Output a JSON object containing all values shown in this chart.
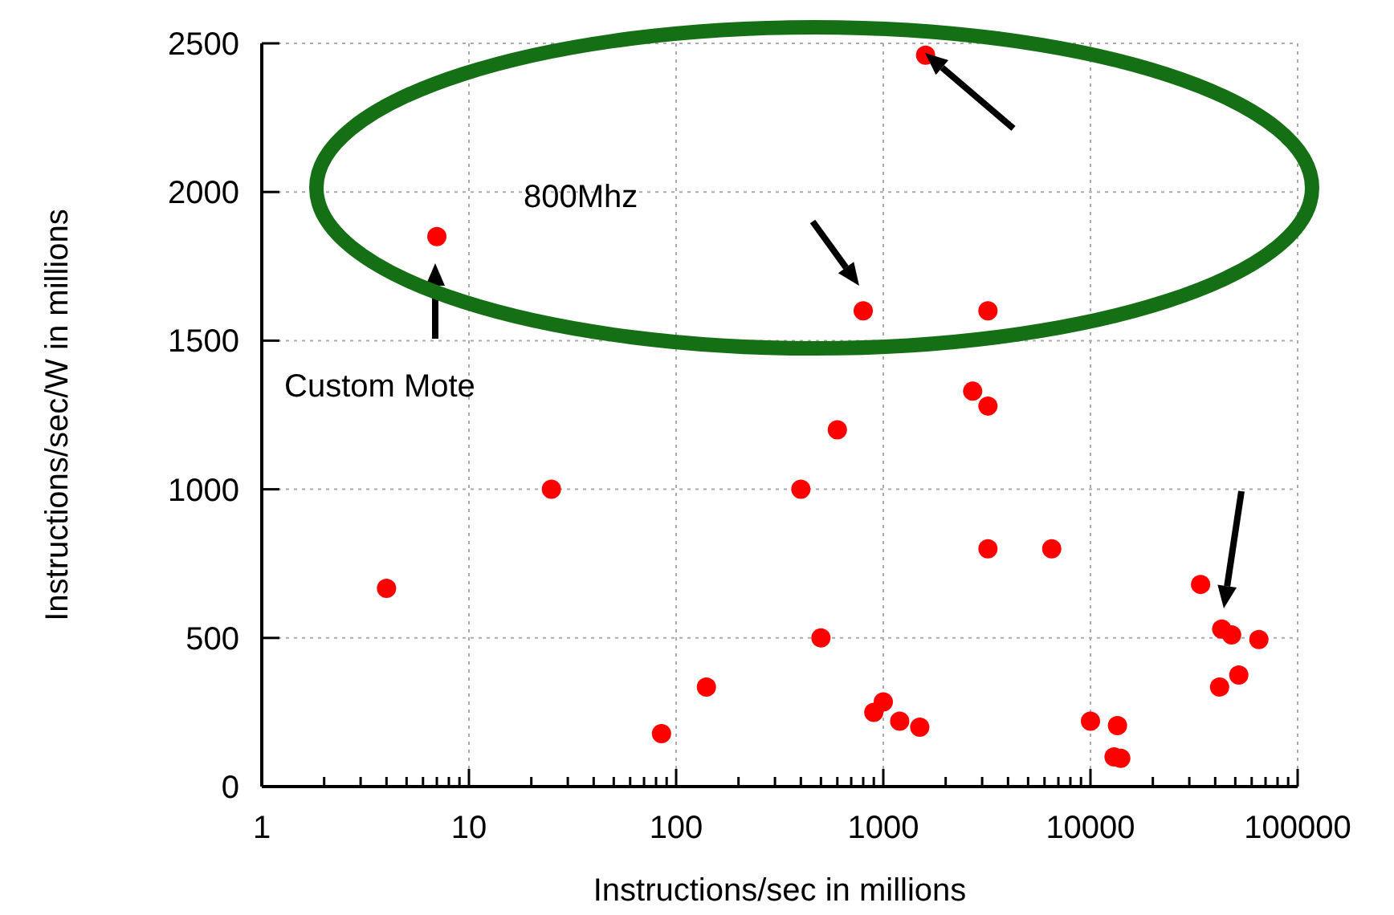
{
  "chart_data": {
    "type": "scatter",
    "xlabel": "Instructions/sec in millions",
    "ylabel": "Instructions/sec/W in millions",
    "log": "x",
    "grid": true,
    "marker": "circle",
    "xlim": [
      1,
      100000
    ],
    "ylim": [
      0,
      2500
    ],
    "xticks": [
      1,
      {
        "value": 2,
        "label": null
      },
      {
        "value": 3,
        "label": null
      },
      {
        "value": 4,
        "label": null
      },
      {
        "value": 5,
        "label": null
      },
      {
        "value": 6,
        "label": null
      },
      {
        "value": 7,
        "label": null
      },
      {
        "value": 8,
        "label": null
      },
      {
        "value": 9,
        "label": null
      },
      10,
      {
        "value": 20,
        "label": null
      },
      {
        "value": 30,
        "label": null
      },
      {
        "value": 40,
        "label": null
      },
      {
        "value": 50,
        "label": null
      },
      {
        "value": 60,
        "label": null
      },
      {
        "value": 70,
        "label": null
      },
      {
        "value": 80,
        "label": null
      },
      {
        "value": 90,
        "label": null
      },
      100,
      {
        "value": 200,
        "label": null
      },
      {
        "value": 300,
        "label": null
      },
      {
        "value": 400,
        "label": null
      },
      {
        "value": 500,
        "label": null
      },
      {
        "value": 600,
        "label": null
      },
      {
        "value": 700,
        "label": null
      },
      {
        "value": 800,
        "label": null
      },
      {
        "value": 900,
        "label": null
      },
      1000,
      {
        "value": 2000,
        "label": null
      },
      {
        "value": 3000,
        "label": null
      },
      {
        "value": 4000,
        "label": null
      },
      {
        "value": 5000,
        "label": null
      },
      {
        "value": 6000,
        "label": null
      },
      {
        "value": 7000,
        "label": null
      },
      {
        "value": 8000,
        "label": null
      },
      {
        "value": 9000,
        "label": null
      },
      10000,
      {
        "value": 20000,
        "label": null
      },
      {
        "value": 30000,
        "label": null
      },
      {
        "value": 40000,
        "label": null
      },
      {
        "value": 50000,
        "label": null
      },
      {
        "value": 60000,
        "label": null
      },
      {
        "value": 70000,
        "label": null
      },
      {
        "value": 80000,
        "label": null
      },
      {
        "value": 90000,
        "label": null
      },
      100000
    ],
    "yticks": [
      0,
      500,
      1000,
      1500,
      2000,
      2500
    ],
    "series": [
      {
        "color": "#ff0000",
        "x": [
          4,
          7,
          25,
          85,
          140,
          400,
          500,
          600,
          800,
          900,
          1000,
          1200,
          1500,
          1600,
          2700,
          3200,
          3200,
          3200,
          6500,
          10000,
          13000,
          14000,
          13500,
          34000,
          42000,
          43000,
          48000,
          52000,
          65000
        ],
        "values": [
          667,
          1850,
          1000,
          178,
          335,
          1000,
          500,
          1200,
          1600,
          250,
          285,
          220,
          200,
          2460,
          1330,
          1280,
          1600,
          800,
          800,
          220,
          100,
          95,
          205,
          680,
          335,
          530,
          510,
          375,
          495
        ]
      }
    ],
    "annotations": [
      "Custom Mote",
      "800Mhz"
    ]
  }
}
